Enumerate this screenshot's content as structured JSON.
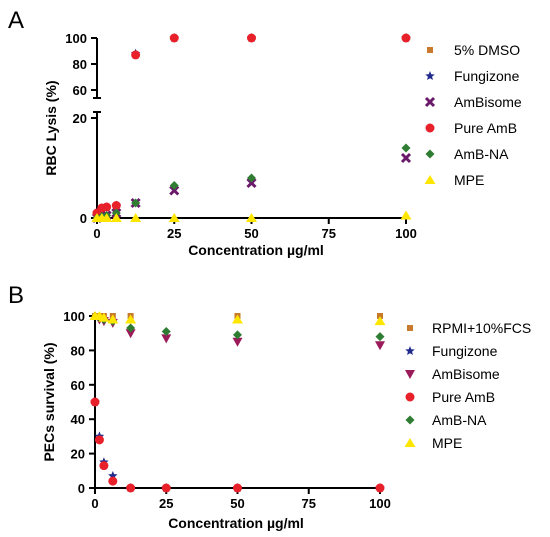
{
  "chart_data": [
    {
      "type": "scatter",
      "panel_label": "A",
      "xlabel": "Concentration µg/ml",
      "ylabel": "RBC Lysis  (%)",
      "xlim": [
        0,
        100
      ],
      "xticks": [
        0,
        25,
        50,
        75,
        100
      ],
      "ylim_lower": [
        0,
        20
      ],
      "ylim_upper": [
        60,
        100
      ],
      "yticks_lower": [
        0,
        20
      ],
      "yticks_upper": [
        60,
        80,
        100
      ],
      "broken_axis": true,
      "legend_position": "right",
      "series": [
        {
          "name": "5% DMSO",
          "marker": "square",
          "color": "#C87A2C",
          "x": [
            0,
            1.56,
            3.125
          ],
          "y": [
            0,
            0,
            0
          ]
        },
        {
          "name": "Fungizone",
          "marker": "star",
          "color": "#1F2A8C",
          "x": [
            0,
            1.56,
            3.125,
            6.25,
            12.5,
            25,
            50,
            100
          ],
          "y": [
            1,
            1.5,
            2,
            2.5,
            88,
            100,
            100,
            100
          ]
        },
        {
          "name": "AmBisome",
          "marker": "x",
          "color": "#6B1A6B",
          "x": [
            0,
            1.56,
            3.125,
            6.25,
            12.5,
            25,
            50,
            100
          ],
          "y": [
            0,
            0.3,
            0.5,
            1,
            3,
            5.5,
            7,
            12
          ]
        },
        {
          "name": "Pure AmB",
          "marker": "circle",
          "color": "#E8202A",
          "x": [
            0,
            1.56,
            3.125,
            6.25,
            12.5,
            25,
            50,
            100
          ],
          "y": [
            1,
            2,
            2.2,
            2.5,
            87,
            100,
            100,
            100
          ]
        },
        {
          "name": "AmB-NA",
          "marker": "diamond",
          "color": "#2E7D32",
          "x": [
            0,
            1.56,
            3.125,
            6.25,
            12.5,
            25,
            50,
            100
          ],
          "y": [
            0,
            0.3,
            0.5,
            1,
            3,
            6.5,
            8,
            14
          ]
        },
        {
          "name": "MPE",
          "marker": "triangle",
          "color": "#FFE600",
          "x": [
            0,
            1.56,
            3.125,
            6.25,
            12.5,
            25,
            50,
            100
          ],
          "y": [
            0,
            0,
            0,
            0,
            0,
            0,
            0,
            0.5
          ]
        }
      ]
    },
    {
      "type": "scatter",
      "panel_label": "B",
      "xlabel": "Concentration µg/ml",
      "ylabel": "PECs survival (%)",
      "xlim": [
        0,
        100
      ],
      "ylim": [
        0,
        100
      ],
      "xticks": [
        0,
        25,
        50,
        75,
        100
      ],
      "yticks": [
        0,
        20,
        40,
        60,
        80,
        100
      ],
      "legend_position": "right",
      "series": [
        {
          "name": "RPMI+10%FCS",
          "marker": "square",
          "color": "#C87A2C",
          "x": [
            0,
            1.56,
            3.125,
            6.25,
            12.5,
            50,
            100
          ],
          "y": [
            100,
            100,
            100,
            100,
            100,
            100,
            100
          ]
        },
        {
          "name": "Fungizone",
          "marker": "star",
          "color": "#1F2A8C",
          "x": [
            0,
            1.56,
            3.125,
            6.25,
            12.5,
            25,
            50,
            100
          ],
          "y": [
            50,
            30,
            15,
            7,
            0,
            0,
            0,
            0
          ]
        },
        {
          "name": "AmBisome",
          "marker": "triangle-down",
          "color": "#9B1B5A",
          "x": [
            1.56,
            3.125,
            6.25,
            12.5,
            25,
            50,
            100
          ],
          "y": [
            98,
            97,
            96,
            90,
            87,
            85,
            83
          ]
        },
        {
          "name": "Pure AmB",
          "marker": "circle",
          "color": "#E8202A",
          "x": [
            0,
            1.56,
            3.125,
            6.25,
            12.5,
            25,
            50,
            100
          ],
          "y": [
            50,
            28,
            13,
            4,
            0,
            0,
            0,
            0
          ]
        },
        {
          "name": "AmB-NA",
          "marker": "diamond",
          "color": "#2E7D32",
          "x": [
            1.56,
            3.125,
            6.25,
            12.5,
            25,
            50,
            100
          ],
          "y": [
            99,
            98,
            97,
            93,
            91,
            89,
            88
          ]
        },
        {
          "name": "MPE",
          "marker": "triangle",
          "color": "#FFE600",
          "x": [
            0,
            1.56,
            3.125,
            6.25,
            12.5,
            50,
            100
          ],
          "y": [
            100,
            100,
            99,
            98,
            98,
            98,
            97
          ]
        }
      ]
    }
  ]
}
